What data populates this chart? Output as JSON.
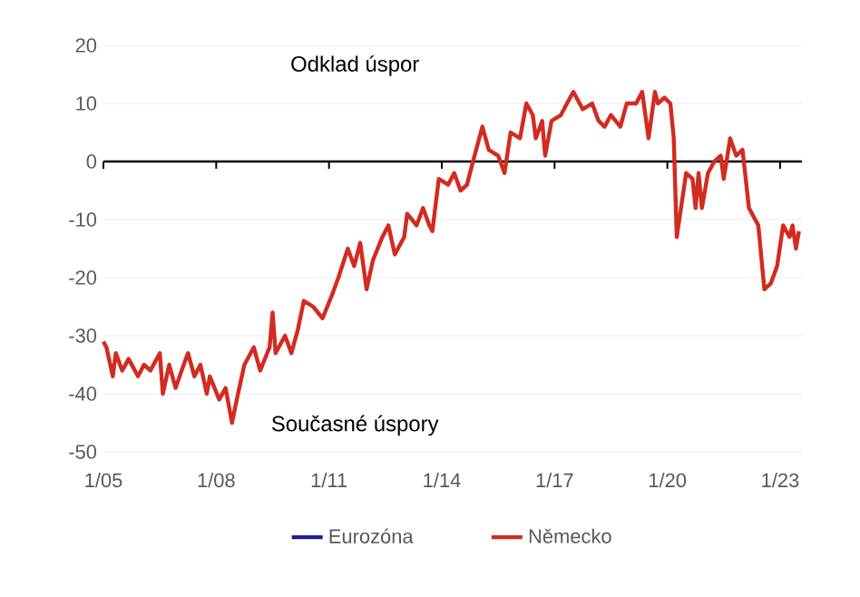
{
  "chart_data": {
    "type": "line",
    "legend": "bottom",
    "grid": "y",
    "marker": "none",
    "line_style": "solid",
    "xlim": [
      "2005-01",
      "2023-08"
    ],
    "ylim": [
      -50,
      20
    ],
    "yticks": [
      -50,
      -40,
      -30,
      -20,
      -10,
      0,
      10,
      20
    ],
    "xticks": [
      {
        "value": "2005-01",
        "label": "1/05"
      },
      {
        "value": "2008-01",
        "label": "1/08"
      },
      {
        "value": "2011-01",
        "label": "1/11"
      },
      {
        "value": "2014-01",
        "label": "1/14"
      },
      {
        "value": "2017-01",
        "label": "1/17"
      },
      {
        "value": "2020-01",
        "label": "1/20"
      },
      {
        "value": "2023-01",
        "label": "1/23"
      }
    ],
    "ref_lines": [
      {
        "axis": "y",
        "value": 0,
        "color": "#000000"
      }
    ],
    "annotations": [
      "Odklad úspor",
      "Současné úspory"
    ],
    "series": [
      {
        "name": "Eurozóna",
        "color": "#1f1f8f"
      },
      {
        "name": "Německo",
        "color": "#d22b1f",
        "x": [
          "2005-01",
          "2005-02",
          "2005-04",
          "2005-05",
          "2005-07",
          "2005-09",
          "2005-12",
          "2006-02",
          "2006-04",
          "2006-07",
          "2006-08",
          "2006-10",
          "2006-12",
          "2007-02",
          "2007-04",
          "2007-06",
          "2007-08",
          "2007-10",
          "2007-11",
          "2008-02",
          "2008-04",
          "2008-06",
          "2008-08",
          "2008-10",
          "2009-01",
          "2009-03",
          "2009-06",
          "2009-07",
          "2009-08",
          "2009-11",
          "2010-01",
          "2010-03",
          "2010-05",
          "2010-08",
          "2010-11",
          "2011-02",
          "2011-04",
          "2011-07",
          "2011-09",
          "2011-11",
          "2012-01",
          "2012-03",
          "2012-06",
          "2012-08",
          "2012-10",
          "2013-01",
          "2013-02",
          "2013-05",
          "2013-07",
          "2013-09",
          "2013-10",
          "2013-12",
          "2014-03",
          "2014-05",
          "2014-07",
          "2014-09",
          "2014-11",
          "2015-02",
          "2015-04",
          "2015-07",
          "2015-09",
          "2015-11",
          "2016-02",
          "2016-04",
          "2016-06",
          "2016-07",
          "2016-09",
          "2016-10",
          "2016-12",
          "2017-03",
          "2017-05",
          "2017-07",
          "2017-10",
          "2018-01",
          "2018-03",
          "2018-05",
          "2018-07",
          "2018-10",
          "2018-12",
          "2019-03",
          "2019-05",
          "2019-07",
          "2019-09",
          "2019-10",
          "2019-12",
          "2020-02",
          "2020-03",
          "2020-04",
          "2020-07",
          "2020-09",
          "2020-10",
          "2020-11",
          "2020-12",
          "2021-02",
          "2021-04",
          "2021-06",
          "2021-07",
          "2021-09",
          "2021-11",
          "2022-01",
          "2022-03",
          "2022-06",
          "2022-08",
          "2022-10",
          "2022-12",
          "2023-02",
          "2023-04",
          "2023-05",
          "2023-06",
          "2023-07"
        ],
        "values": [
          -31,
          -32,
          -37,
          -33,
          -36,
          -34,
          -37,
          -35,
          -36,
          -33,
          -40,
          -35,
          -39,
          -36,
          -33,
          -37,
          -35,
          -40,
          -37,
          -41,
          -39,
          -45,
          -40,
          -35,
          -32,
          -36,
          -32,
          -26,
          -33,
          -30,
          -33,
          -29,
          -24,
          -25,
          -27,
          -23,
          -20,
          -15,
          -18,
          -14,
          -22,
          -17,
          -13,
          -11,
          -16,
          -13,
          -9,
          -11,
          -8,
          -11,
          -12,
          -3,
          -4,
          -2,
          -5,
          -4,
          0,
          6,
          2,
          1,
          -2,
          5,
          4,
          10,
          8,
          4,
          7,
          1,
          7,
          8,
          10,
          12,
          9,
          10,
          7,
          6,
          8,
          6,
          10,
          10,
          12,
          4,
          12,
          10,
          11,
          10,
          4,
          -13,
          -2,
          -3,
          -8,
          -2,
          -8,
          -2,
          0,
          1,
          -3,
          4,
          1,
          2,
          -8,
          -11,
          -22,
          -21,
          -18,
          -11,
          -13,
          -11,
          -15,
          -12
        ]
      }
    ]
  }
}
